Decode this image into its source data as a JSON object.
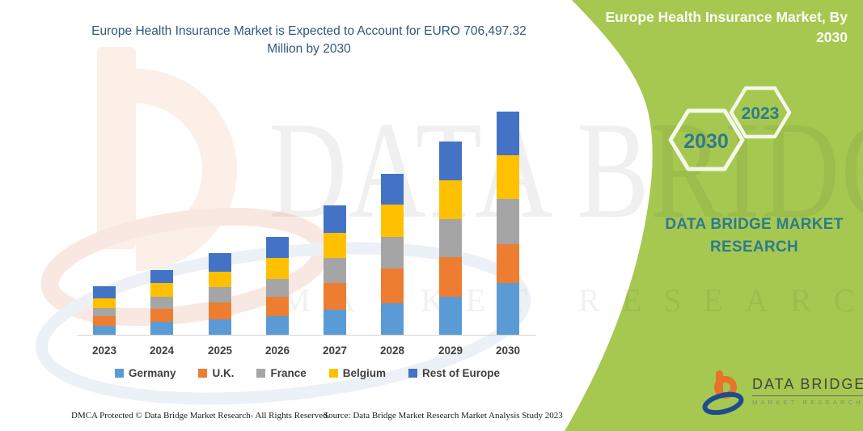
{
  "chart_data": {
    "type": "bar",
    "stacked": true,
    "title": "Europe Health Insurance Market is Expected to Account for EURO 706,497.32 Million by 2030",
    "xlabel": "",
    "ylabel": "",
    "y_axis_visible": false,
    "grid": false,
    "legend_position": "bottom",
    "units": "EURO Million (estimated; only the 2030 total 706,497.32 is labeled)",
    "categories": [
      "2023",
      "2024",
      "2025",
      "2026",
      "2027",
      "2028",
      "2029",
      "2030"
    ],
    "series": [
      {
        "name": "Germany",
        "color": "#5B9BD5",
        "values": [
          28400,
          41300,
          49000,
          59300,
          79900,
          100600,
          121200,
          165000
        ]
      },
      {
        "name": "U.K.",
        "color": "#ED7D31",
        "values": [
          30900,
          41300,
          54100,
          61900,
          85100,
          108300,
          123800,
          121200
        ]
      },
      {
        "name": "France",
        "color": "#A5A5A5",
        "values": [
          25800,
          38700,
          49000,
          56700,
          77400,
          100600,
          121200,
          144400
        ]
      },
      {
        "name": "Belgium",
        "color": "#FFC000",
        "values": [
          30900,
          43800,
          46400,
          64500,
          79900,
          103100,
          123800,
          136700
        ]
      },
      {
        "name": "Rest of Europe",
        "color": "#4472C4",
        "values": [
          38700,
          38700,
          59300,
          67000,
          87700,
          98000,
          121200,
          139200
        ]
      }
    ],
    "totals_estimated": [
      154700,
      203800,
      257800,
      309400,
      410000,
      510600,
      611200,
      706500
    ],
    "value_note": "Segment values estimated from bar heights; no y-axis shown in source image."
  },
  "side_panel": {
    "title": "Europe Health Insurance Market, By 2030",
    "hexagon_back_label": "2030",
    "hexagon_front_label": "2023",
    "brand_text": "DATA BRIDGE MARKET RESEARCH",
    "panel_color": "#A6C851",
    "accent_text_color": "#2E7B8C"
  },
  "watermark": {
    "line1": "DATA BRIDGE",
    "line2": "MARKET RESEARCH"
  },
  "logo": {
    "title": "DATA BRIDGE",
    "subtitle": "MARKET RESEARCH",
    "icon_orange": "#E8732A",
    "icon_blue": "#1F4C8F"
  },
  "footer": {
    "dmca": "DMCA Protected © Data Bridge Market Research-  All Rights Reserved.",
    "source": "Source: Data Bridge Market Research  Market Analysis Study 2023"
  }
}
